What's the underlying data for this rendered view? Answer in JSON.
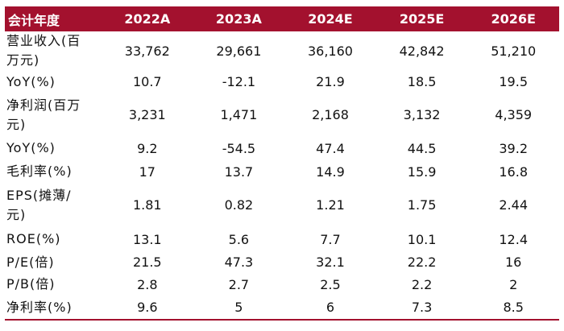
{
  "table": {
    "header": [
      "会计年度",
      "2022A",
      "2023A",
      "2024E",
      "2025E",
      "2026E"
    ],
    "rows": [
      [
        "营业收入(百万元)",
        "33,762",
        "29,661",
        "36,160",
        "42,842",
        "51,210"
      ],
      [
        "YoY(%)",
        "10.7",
        "-12.1",
        "21.9",
        "18.5",
        "19.5"
      ],
      [
        "净利润(百万元)",
        "3,231",
        "1,471",
        "2,168",
        "3,132",
        "4,359"
      ],
      [
        "YoY(%)",
        "9.2",
        "-54.5",
        "47.4",
        "44.5",
        "39.2"
      ],
      [
        "毛利率(%)",
        "17",
        "13.7",
        "14.9",
        "15.9",
        "16.8"
      ],
      [
        "EPS(摊薄/元)",
        "1.81",
        "0.82",
        "1.21",
        "1.75",
        "2.44"
      ],
      [
        "ROE(%)",
        "13.1",
        "5.6",
        "7.7",
        "10.1",
        "12.4"
      ],
      [
        "P/E(倍)",
        "21.5",
        "47.3",
        "32.1",
        "22.2",
        "16"
      ],
      [
        "P/B(倍)",
        "2.8",
        "2.7",
        "2.5",
        "2.2",
        "2"
      ],
      [
        "净利率(%)",
        "9.6",
        "5",
        "6",
        "7.3",
        "8.5"
      ]
    ]
  }
}
